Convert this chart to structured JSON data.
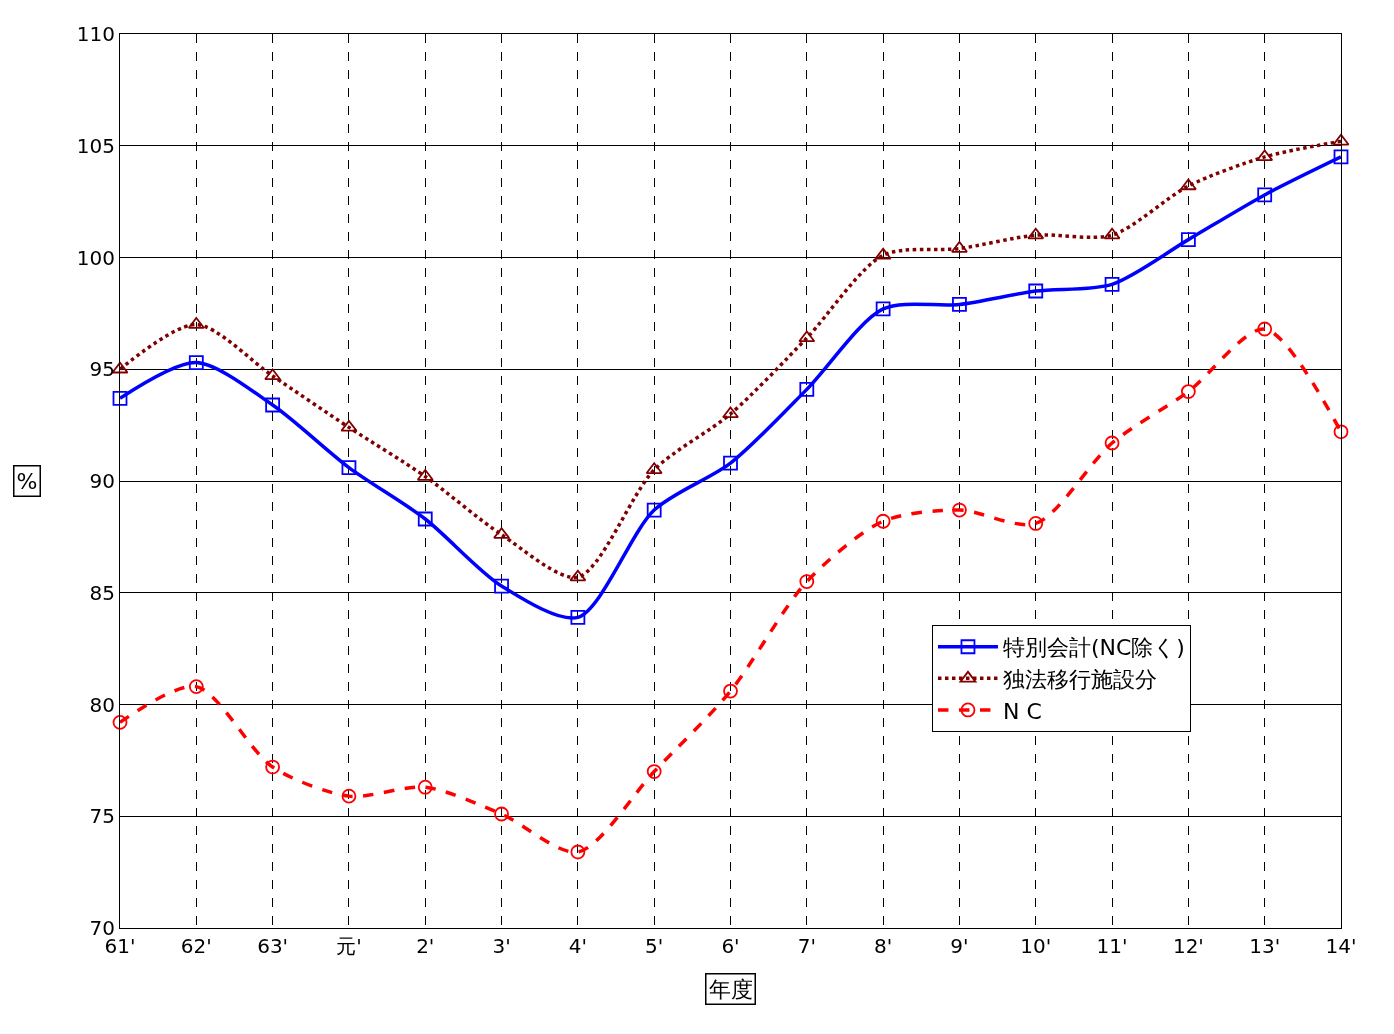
{
  "chart_data": {
    "type": "line",
    "xlabel": "年度",
    "ylabel": "%",
    "categories": [
      "61'",
      "62'",
      "63'",
      "元'",
      "2'",
      "3'",
      "4'",
      "5'",
      "6'",
      "7'",
      "8'",
      "9'",
      "10'",
      "11'",
      "12'",
      "13'",
      "14'"
    ],
    "series": [
      {
        "name": "特別会計(NC除く)",
        "color": "#0000ff",
        "marker": "square",
        "line_style": "solid",
        "values": [
          93.7,
          95.3,
          93.4,
          90.6,
          88.3,
          85.3,
          83.9,
          88.7,
          90.8,
          94.1,
          97.7,
          97.9,
          98.5,
          98.8,
          100.8,
          102.8,
          104.5
        ]
      },
      {
        "name": "独法移行施設分",
        "color": "#800000",
        "marker": "triangle",
        "line_style": "dotted",
        "values": [
          95.0,
          97.0,
          94.7,
          92.4,
          90.2,
          87.6,
          85.7,
          90.5,
          93.0,
          96.4,
          100.1,
          100.4,
          101.0,
          101.0,
          103.2,
          104.5,
          105.2
        ]
      },
      {
        "name": "N C",
        "color": "#ff0000",
        "marker": "circle",
        "line_style": "dashed",
        "values": [
          79.2,
          80.8,
          77.2,
          75.9,
          76.3,
          75.1,
          73.4,
          77.0,
          80.6,
          85.5,
          88.2,
          88.7,
          88.1,
          91.7,
          94.0,
          96.8,
          92.2
        ]
      }
    ],
    "ylim": [
      70,
      110
    ],
    "yticks": [
      70,
      75,
      80,
      85,
      90,
      95,
      100,
      105,
      110
    ],
    "grid": true,
    "legend": "bottom right"
  }
}
